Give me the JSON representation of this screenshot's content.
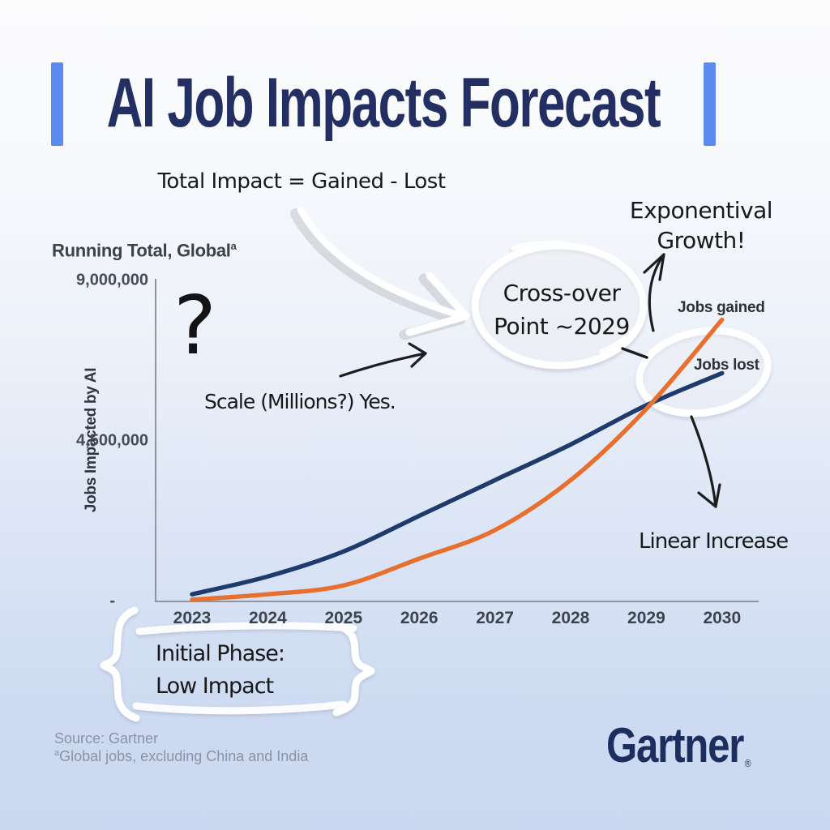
{
  "page": {
    "background_top": "#fbfbfc",
    "background_bottom": "#c9d7f0",
    "accent_blue": "#5b8bee",
    "title_navy": "#232f63",
    "handwriting_black": "#17181a",
    "axis_gray": "#8e959e",
    "muted_gray": "#8b93a1"
  },
  "header": {
    "title": "AI Job Impacts Forecast"
  },
  "annotations": {
    "formula": "Total Impact = Gained - Lost",
    "exponential_line1": "Exponentival",
    "exponential_line2": "Growth!",
    "crossover_line1": "Cross-over",
    "crossover_line2": "Point ~2029",
    "question_mark": "?",
    "scale_note": "Scale (Millions?) Yes.",
    "linear_note": "Linear Increase",
    "initial_phase_line1": "Initial Phase:",
    "initial_phase_line2": "Low Impact"
  },
  "chart_data": {
    "type": "line",
    "title": "Running Total, Global",
    "title_superscript": "a",
    "y_axis_title": "Jobs Impacted by AI",
    "x": [
      "2023",
      "2024",
      "2025",
      "2026",
      "2027",
      "2028",
      "2029",
      "2030"
    ],
    "series": [
      {
        "name": "Jobs gained",
        "color": "#e8702e",
        "shape": "exponential",
        "values": [
          50000,
          200000,
          450000,
          1200000,
          2000000,
          3400000,
          5400000,
          7900000
        ]
      },
      {
        "name": "Jobs lost",
        "color": "#1f3a6c",
        "shape": "linear",
        "values": [
          200000,
          700000,
          1400000,
          2400000,
          3400000,
          4400000,
          5500000,
          6400000
        ]
      }
    ],
    "ylim": [
      0,
      9000000
    ],
    "yticks": [
      {
        "value": 9000000,
        "label": "9,000,000"
      },
      {
        "value": 4500000,
        "label": "4,500,000"
      },
      {
        "value": 0,
        "label": "-"
      }
    ],
    "grid": false,
    "legend": "inline-labels",
    "crossover_year": "~2029"
  },
  "footer": {
    "source": "Source: Gartner",
    "footnote_superscript": "a",
    "footnote": "Global jobs, excluding China and India",
    "logo_text": "Gartner",
    "logo_registered": "®"
  }
}
